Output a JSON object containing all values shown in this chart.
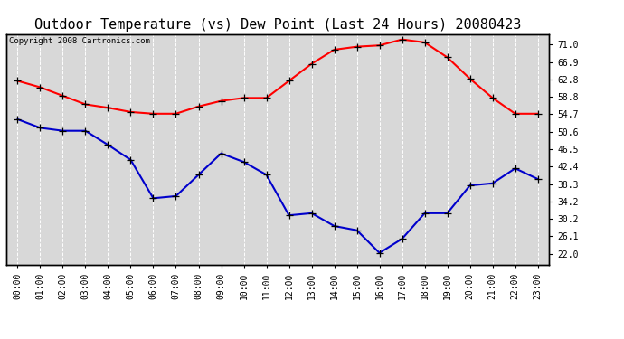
{
  "title": "Outdoor Temperature (vs) Dew Point (Last 24 Hours) 20080423",
  "copyright": "Copyright 2008 Cartronics.com",
  "hours": [
    "00:00",
    "01:00",
    "02:00",
    "03:00",
    "04:00",
    "05:00",
    "06:00",
    "07:00",
    "08:00",
    "09:00",
    "10:00",
    "11:00",
    "12:00",
    "13:00",
    "14:00",
    "15:00",
    "16:00",
    "17:00",
    "18:00",
    "19:00",
    "20:00",
    "21:00",
    "22:00",
    "23:00"
  ],
  "temp": [
    62.5,
    61.0,
    59.0,
    57.0,
    56.2,
    55.2,
    54.8,
    54.8,
    56.5,
    57.8,
    58.5,
    58.5,
    62.5,
    66.5,
    69.8,
    70.5,
    70.8,
    72.2,
    71.5,
    68.0,
    63.0,
    58.5,
    54.8,
    54.8
  ],
  "dewpoint": [
    53.5,
    51.5,
    50.8,
    50.8,
    47.5,
    44.0,
    35.0,
    35.5,
    40.5,
    45.5,
    43.5,
    40.5,
    31.0,
    31.5,
    28.5,
    27.5,
    22.2,
    25.5,
    31.5,
    31.5,
    38.0,
    38.5,
    42.0,
    39.5
  ],
  "temp_color": "#ff0000",
  "dew_color": "#0000cc",
  "bg_color": "#ffffff",
  "plot_bg_color": "#d8d8d8",
  "grid_color": "#ffffff",
  "title_color": "#000000",
  "yticks_right": [
    22.0,
    26.1,
    30.2,
    34.2,
    38.3,
    42.4,
    46.5,
    50.6,
    54.7,
    58.8,
    62.8,
    66.9,
    71.0
  ],
  "ylim": [
    19.5,
    73.5
  ],
  "marker": "+",
  "marker_size": 6,
  "linewidth": 1.5,
  "title_fontsize": 11,
  "copyright_fontsize": 6.5,
  "tick_fontsize": 7,
  "xtick_fontsize": 7
}
